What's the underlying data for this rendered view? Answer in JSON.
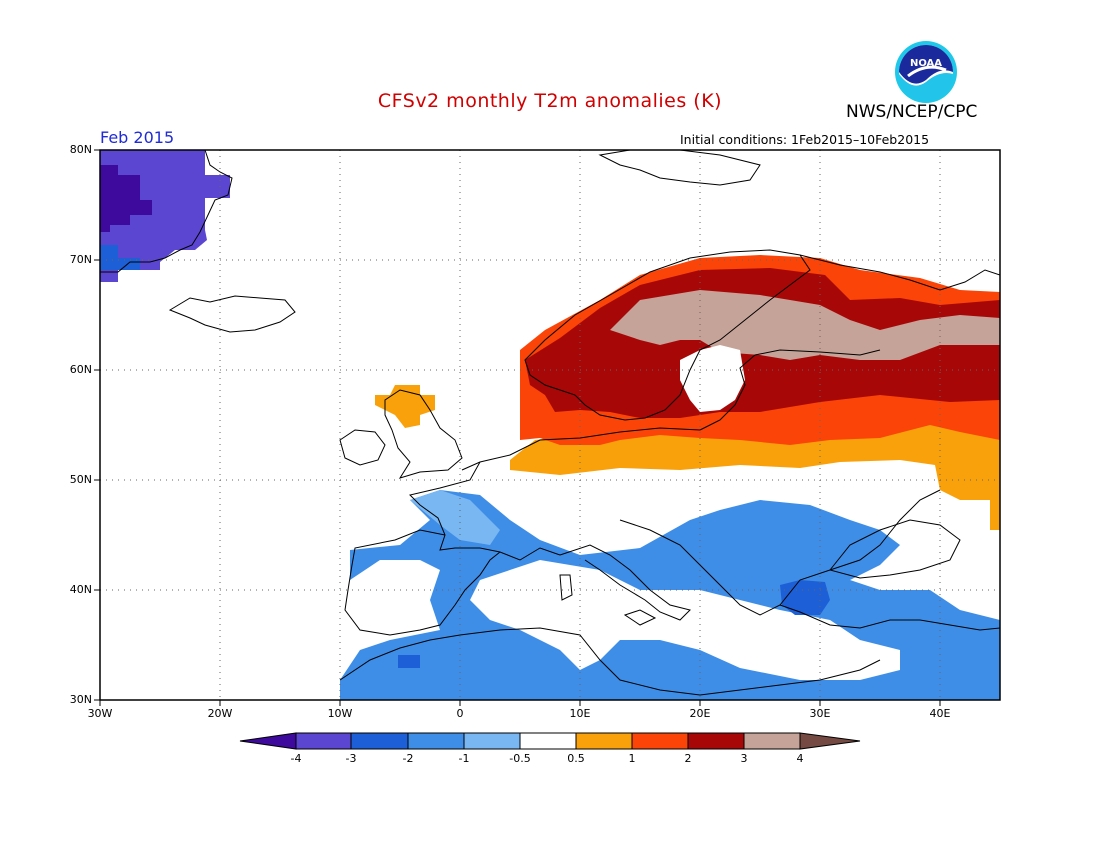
{
  "header": {
    "title": "CFSv2 monthly T2m anomalies (K)",
    "agency": "NWS/NCEP/CPC",
    "month": "Feb 2015",
    "initial_conditions": "Initial conditions: 1Feb2015–10Feb2015",
    "logo_text": "NOAA"
  },
  "map": {
    "lon_range": [
      -30,
      45
    ],
    "lat_range": [
      30,
      80
    ],
    "lat_labels": [
      "30N",
      "40N",
      "50N",
      "60N",
      "70N",
      "80N"
    ],
    "lon_labels": [
      "30W",
      "20W",
      "10W",
      "0",
      "10E",
      "20E",
      "30E",
      "40E"
    ],
    "grid": true,
    "grid_style": "dotted"
  },
  "colorbar": {
    "labels": [
      "-4",
      "-3",
      "-2",
      "-1",
      "-0.5",
      "0.5",
      "1",
      "2",
      "3",
      "4"
    ],
    "colors": [
      "#3e0a9e",
      "#5b46d2",
      "#1d5fd6",
      "#3e8ee8",
      "#78b7f2",
      "#ffffff",
      "#f9a10a",
      "#fb4407",
      "#a80707",
      "#c6a398",
      "#744a42"
    ]
  },
  "anomaly_colors": {
    "lt_m4": "#3e0a9e",
    "m4_m3": "#5b46d2",
    "m3_m2": "#1d5fd6",
    "m2_m1": "#3e8ee8",
    "m1_m05": "#78b7f2",
    "p05_1": "#f9a10a",
    "p1_2": "#fb4407",
    "p2_3": "#a80707",
    "p3_4": "#c6a398"
  }
}
